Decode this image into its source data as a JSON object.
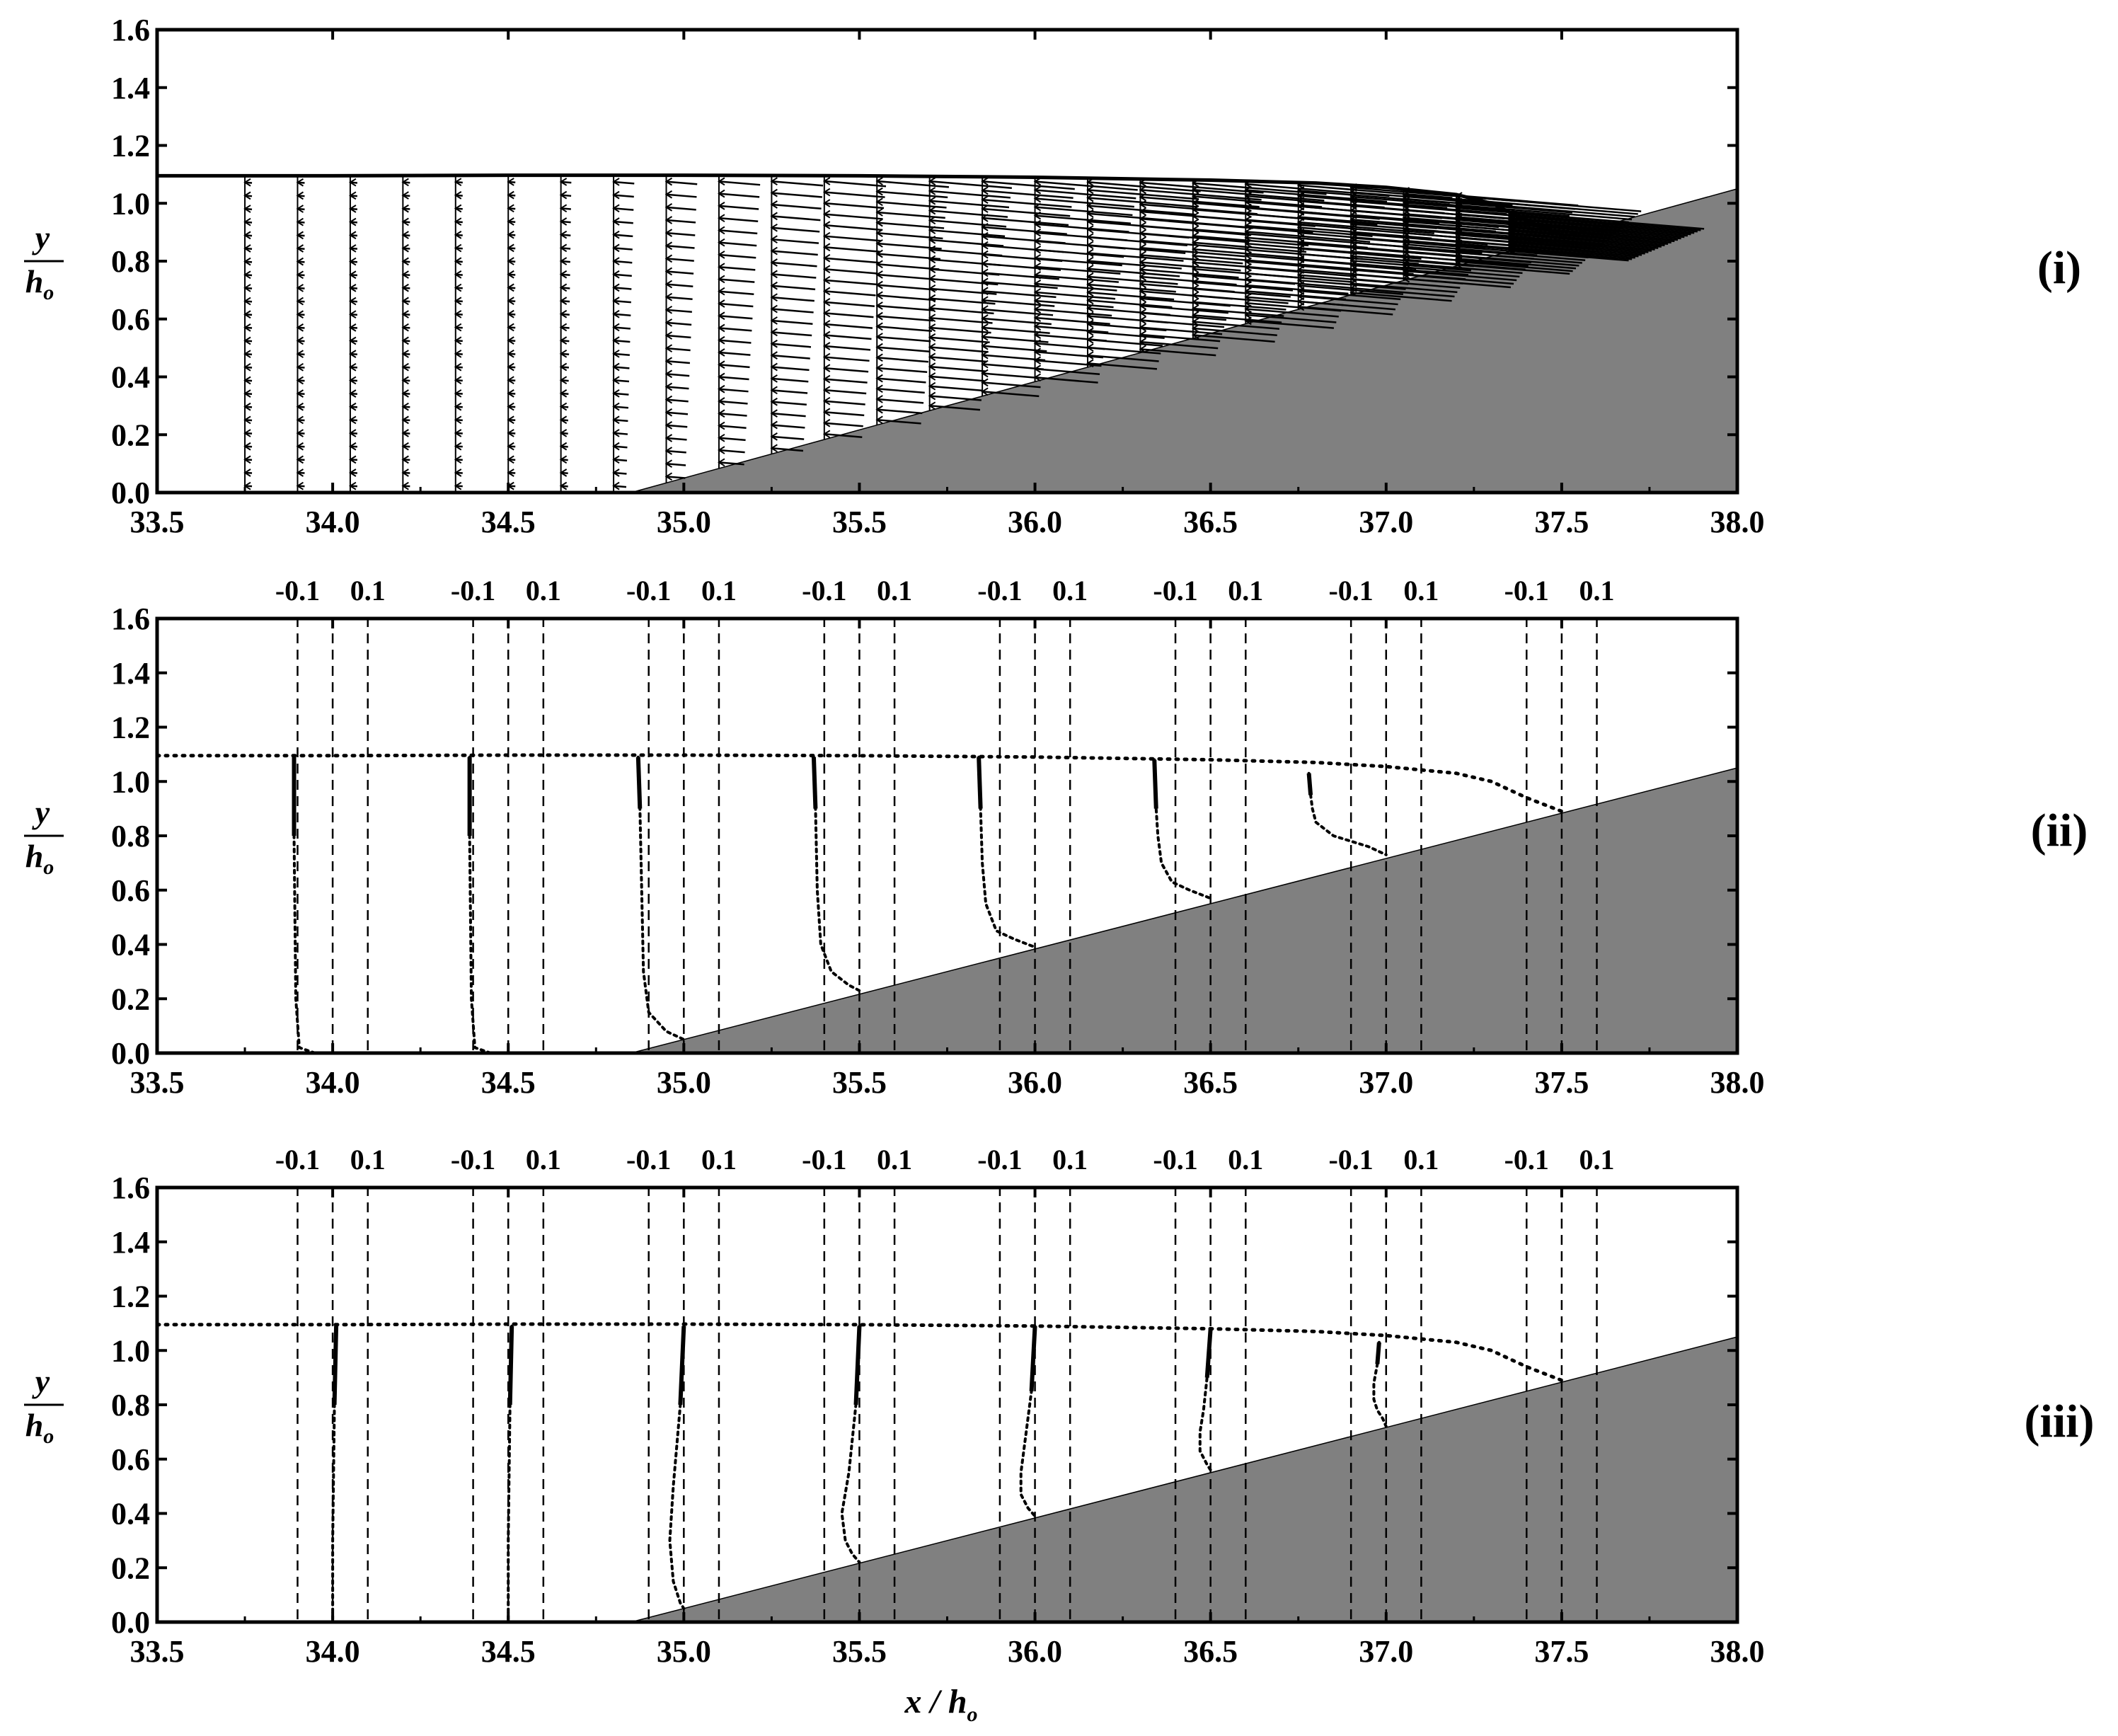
{
  "figure": {
    "xlabel": "x / h",
    "xlabel_subscript": "o",
    "ylabel_num": "y",
    "ylabel_den": "h",
    "ylabel_den_subscript": "o",
    "x_ticks": [
      "33.5",
      "34.0",
      "34.5",
      "35.0",
      "35.5",
      "36.0",
      "36.5",
      "37.0",
      "37.5",
      "38.0"
    ],
    "y_ticks": [
      "0.0",
      "0.2",
      "0.4",
      "0.6",
      "0.8",
      "1.0",
      "1.2",
      "1.4",
      "1.6"
    ],
    "profile_scale_labels": [
      "-0.1",
      "0.1"
    ],
    "colors": {
      "slope": "#808080",
      "ink": "#000000"
    }
  },
  "chart_data": [
    {
      "type": "vector-field",
      "panel_label": "(i)",
      "xlim": [
        33.5,
        38.0
      ],
      "ylim": [
        0.0,
        1.6
      ],
      "bed_slope": {
        "x_start": 34.85,
        "x_end": 38.0,
        "y_end": 1.05
      },
      "free_surface": {
        "x": [
          33.5,
          34.0,
          34.5,
          35.0,
          35.5,
          36.0,
          36.5,
          36.8,
          37.0,
          37.2,
          37.3,
          37.4,
          37.5
        ],
        "y": [
          1.095,
          1.095,
          1.097,
          1.097,
          1.095,
          1.09,
          1.08,
          1.07,
          1.055,
          1.03,
          1.0,
          0.94,
          0.89
        ]
      },
      "vector_columns_x": [
        33.75,
        33.9,
        34.05,
        34.2,
        34.35,
        34.5,
        34.65,
        34.8,
        34.95,
        35.1,
        35.25,
        35.4,
        35.55,
        35.7,
        35.85,
        36.0,
        36.15,
        36.3,
        36.45,
        36.6,
        36.75,
        36.9,
        37.05,
        37.2,
        37.35
      ]
    },
    {
      "type": "profile",
      "panel_label": "(ii)",
      "xlim": [
        33.5,
        38.0
      ],
      "ylim": [
        0.0,
        1.6
      ],
      "bed_slope": {
        "x_start": 34.85,
        "x_end": 38.0,
        "y_end": 1.05
      },
      "free_surface": {
        "x": [
          33.5,
          34.0,
          34.5,
          35.0,
          35.5,
          36.0,
          36.5,
          36.8,
          37.0,
          37.2,
          37.3,
          37.4,
          37.5
        ],
        "y": [
          1.095,
          1.095,
          1.097,
          1.097,
          1.095,
          1.09,
          1.08,
          1.07,
          1.055,
          1.03,
          1.0,
          0.94,
          0.89
        ]
      },
      "reference_lines_x": [
        [
          33.9,
          34.0,
          34.1
        ],
        [
          34.4,
          34.5,
          34.6
        ],
        [
          34.9,
          35.0,
          35.1
        ],
        [
          35.4,
          35.5,
          35.6
        ],
        [
          35.9,
          36.0,
          36.1
        ],
        [
          36.4,
          36.5,
          36.6
        ],
        [
          36.9,
          37.0,
          37.1
        ],
        [
          37.4,
          37.5,
          37.6
        ]
      ],
      "profiles": [
        {
          "x": [
            33.89,
            33.89,
            33.895,
            33.905,
            33.95
          ],
          "y": [
            1.09,
            0.8,
            0.2,
            0.02,
            0.0
          ]
        },
        {
          "x": [
            34.39,
            34.39,
            34.395,
            34.405,
            34.45
          ],
          "y": [
            1.09,
            0.8,
            0.2,
            0.02,
            0.0
          ]
        },
        {
          "x": [
            34.87,
            34.875,
            34.88,
            34.885,
            34.9,
            34.95,
            35.0
          ],
          "y": [
            1.09,
            0.9,
            0.6,
            0.3,
            0.15,
            0.08,
            0.05
          ]
        },
        {
          "x": [
            35.37,
            35.375,
            35.38,
            35.39,
            35.42,
            35.47,
            35.5
          ],
          "y": [
            1.09,
            0.9,
            0.6,
            0.4,
            0.3,
            0.25,
            0.23
          ]
        },
        {
          "x": [
            35.84,
            35.845,
            35.85,
            35.86,
            35.89,
            35.94,
            36.0
          ],
          "y": [
            1.09,
            0.9,
            0.7,
            0.55,
            0.45,
            0.42,
            0.39
          ]
        },
        {
          "x": [
            36.34,
            36.345,
            36.35,
            36.36,
            36.39,
            36.44,
            36.5
          ],
          "y": [
            1.08,
            0.9,
            0.8,
            0.7,
            0.63,
            0.6,
            0.57
          ]
        },
        {
          "x": [
            36.78,
            36.785,
            36.79,
            36.8,
            36.85,
            36.95,
            37.0
          ],
          "y": [
            1.03,
            0.95,
            0.9,
            0.85,
            0.8,
            0.76,
            0.73
          ]
        }
      ]
    },
    {
      "type": "profile",
      "panel_label": "(iii)",
      "xlim": [
        33.5,
        38.0
      ],
      "ylim": [
        0.0,
        1.6
      ],
      "bed_slope": {
        "x_start": 34.85,
        "x_end": 38.0,
        "y_end": 1.05
      },
      "free_surface": {
        "x": [
          33.5,
          34.0,
          34.5,
          35.0,
          35.5,
          36.0,
          36.5,
          36.8,
          37.0,
          37.2,
          37.3,
          37.4,
          37.5
        ],
        "y": [
          1.095,
          1.095,
          1.097,
          1.097,
          1.095,
          1.09,
          1.08,
          1.07,
          1.055,
          1.03,
          1.0,
          0.94,
          0.89
        ]
      },
      "reference_lines_x": [
        [
          33.9,
          34.0,
          34.1
        ],
        [
          34.4,
          34.5,
          34.6
        ],
        [
          34.9,
          35.0,
          35.1
        ],
        [
          35.4,
          35.5,
          35.6
        ],
        [
          35.9,
          36.0,
          36.1
        ],
        [
          36.4,
          36.5,
          36.6
        ],
        [
          36.9,
          37.0,
          37.1
        ],
        [
          37.4,
          37.5,
          37.6
        ]
      ],
      "profiles": [
        {
          "x": [
            34.01,
            34.005,
            34.0,
            34.0
          ],
          "y": [
            1.09,
            0.8,
            0.3,
            0.0
          ]
        },
        {
          "x": [
            34.51,
            34.505,
            34.5,
            34.5
          ],
          "y": [
            1.09,
            0.8,
            0.3,
            0.0
          ]
        },
        {
          "x": [
            35.0,
            34.99,
            34.97,
            34.96,
            34.97,
            34.99,
            35.0
          ],
          "y": [
            1.09,
            0.8,
            0.5,
            0.3,
            0.15,
            0.07,
            0.05
          ]
        },
        {
          "x": [
            35.5,
            35.49,
            35.47,
            35.45,
            35.46,
            35.48,
            35.5
          ],
          "y": [
            1.09,
            0.8,
            0.55,
            0.4,
            0.3,
            0.25,
            0.22
          ]
        },
        {
          "x": [
            36.0,
            35.99,
            35.97,
            35.96,
            35.96,
            35.98,
            36.0
          ],
          "y": [
            1.09,
            0.85,
            0.65,
            0.55,
            0.47,
            0.42,
            0.39
          ]
        },
        {
          "x": [
            36.5,
            36.49,
            36.48,
            36.47,
            36.47,
            36.49,
            36.5
          ],
          "y": [
            1.08,
            0.9,
            0.78,
            0.7,
            0.63,
            0.58,
            0.56
          ]
        },
        {
          "x": [
            36.98,
            36.975,
            36.965,
            36.965,
            36.975,
            36.99,
            37.0
          ],
          "y": [
            1.03,
            0.95,
            0.88,
            0.82,
            0.78,
            0.75,
            0.72
          ]
        }
      ]
    }
  ]
}
